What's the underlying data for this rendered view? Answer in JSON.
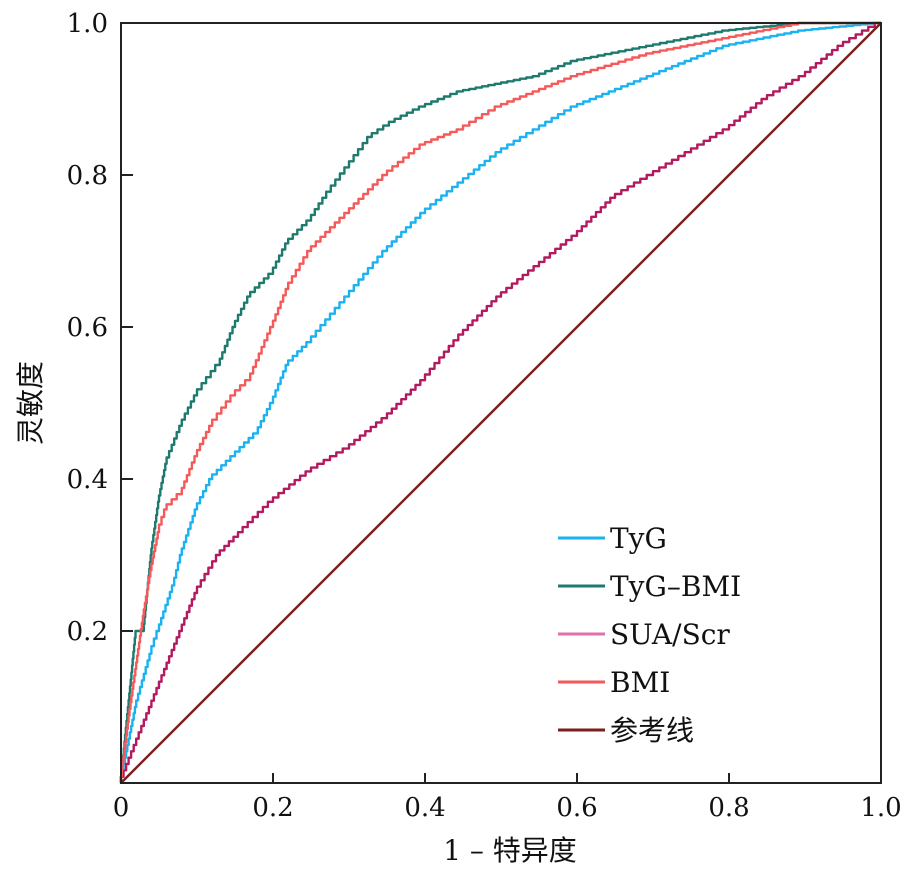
{
  "chart_data": {
    "type": "line",
    "title": "",
    "xlabel": "1 – 特异度",
    "ylabel": "灵敏度",
    "xlim": [
      0,
      1
    ],
    "ylim": [
      0,
      1
    ],
    "grid": false,
    "legend_position": "bottom-right",
    "x_ticks": [
      "0",
      "0.2",
      "0.4",
      "0.6",
      "0.8",
      "1.0"
    ],
    "y_ticks": [
      "0.2",
      "0.4",
      "0.6",
      "0.8",
      "1.0"
    ],
    "x_tick_values": [
      0,
      0.2,
      0.4,
      0.6,
      0.8,
      1.0
    ],
    "y_tick_values": [
      0.2,
      0.4,
      0.6,
      0.8,
      1.0
    ],
    "series": [
      {
        "name": "TyG",
        "color": "#1ab2f0",
        "x": [
          0,
          0.01,
          0.02,
          0.04,
          0.05,
          0.07,
          0.08,
          0.1,
          0.12,
          0.15,
          0.18,
          0.2,
          0.22,
          0.25,
          0.3,
          0.35,
          0.4,
          0.45,
          0.5,
          0.55,
          0.6,
          0.65,
          0.7,
          0.8,
          0.9,
          1
        ],
        "y": [
          0,
          0.05,
          0.1,
          0.17,
          0.2,
          0.26,
          0.3,
          0.36,
          0.4,
          0.43,
          0.46,
          0.5,
          0.55,
          0.58,
          0.64,
          0.7,
          0.75,
          0.79,
          0.83,
          0.86,
          0.89,
          0.91,
          0.93,
          0.97,
          0.99,
          1
        ]
      },
      {
        "name": "TyG–BMI",
        "color": "#1f7a6e",
        "x": [
          0,
          0.01,
          0.02,
          0.03,
          0.04,
          0.05,
          0.06,
          0.08,
          0.1,
          0.13,
          0.15,
          0.17,
          0.2,
          0.22,
          0.25,
          0.27,
          0.3,
          0.33,
          0.36,
          0.4,
          0.45,
          0.5,
          0.55,
          0.6,
          0.7,
          0.8,
          0.9,
          1
        ],
        "y": [
          0,
          0.1,
          0.2,
          0.2,
          0.3,
          0.37,
          0.42,
          0.47,
          0.51,
          0.55,
          0.6,
          0.64,
          0.67,
          0.71,
          0.74,
          0.77,
          0.81,
          0.85,
          0.87,
          0.89,
          0.91,
          0.92,
          0.93,
          0.95,
          0.97,
          0.99,
          1,
          1
        ]
      },
      {
        "name": "SUA/Scr",
        "color": "#b3195f",
        "legend_color": "#e070a8",
        "x": [
          0,
          0.02,
          0.04,
          0.06,
          0.08,
          0.1,
          0.13,
          0.16,
          0.2,
          0.25,
          0.3,
          0.35,
          0.4,
          0.45,
          0.5,
          0.55,
          0.6,
          0.65,
          0.7,
          0.75,
          0.8,
          0.85,
          0.9,
          0.95,
          1
        ],
        "y": [
          0,
          0.05,
          0.1,
          0.15,
          0.2,
          0.25,
          0.3,
          0.33,
          0.37,
          0.41,
          0.44,
          0.48,
          0.53,
          0.59,
          0.64,
          0.68,
          0.72,
          0.77,
          0.8,
          0.83,
          0.86,
          0.9,
          0.93,
          0.97,
          1
        ]
      },
      {
        "name": "BMI",
        "color": "#f55a5a",
        "x": [
          0,
          0.01,
          0.02,
          0.03,
          0.04,
          0.05,
          0.06,
          0.08,
          0.1,
          0.12,
          0.15,
          0.17,
          0.2,
          0.22,
          0.25,
          0.3,
          0.35,
          0.4,
          0.45,
          0.5,
          0.55,
          0.6,
          0.7,
          0.8,
          0.9,
          1
        ],
        "y": [
          0,
          0.08,
          0.15,
          0.22,
          0.28,
          0.33,
          0.36,
          0.38,
          0.43,
          0.47,
          0.51,
          0.53,
          0.6,
          0.65,
          0.7,
          0.75,
          0.8,
          0.84,
          0.86,
          0.89,
          0.91,
          0.93,
          0.96,
          0.98,
          1,
          1
        ]
      },
      {
        "name": "参考线",
        "color": "#7a1e1e",
        "x": [
          0,
          1
        ],
        "y": [
          0,
          1
        ]
      }
    ]
  }
}
